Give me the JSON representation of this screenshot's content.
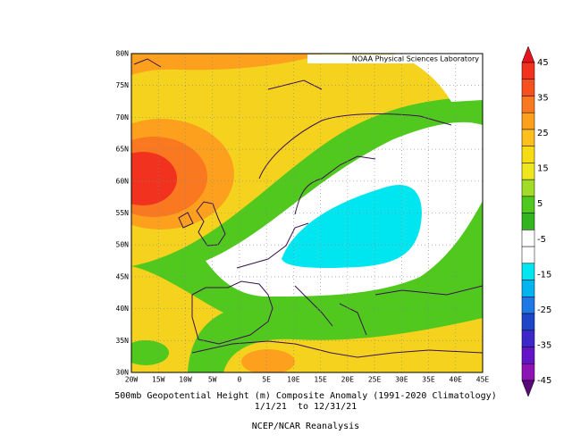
{
  "map": {
    "credit": "NOAA Physical Sciences Laboratory",
    "lat_labels": [
      "80N",
      "75N",
      "70N",
      "65N",
      "60N",
      "55N",
      "50N",
      "45N",
      "40N",
      "35N",
      "30N"
    ],
    "lon_labels": [
      "20W",
      "15W",
      "10W",
      "5W",
      "0",
      "5E",
      "10E",
      "15E",
      "20E",
      "25E",
      "30E",
      "35E",
      "40E",
      "45E"
    ],
    "colorbar": {
      "labels": [
        "45",
        "35",
        "25",
        "15",
        "5",
        "-5",
        "-15",
        "-25",
        "-35",
        "-45"
      ],
      "colors": [
        "#e6141e",
        "#f0321e",
        "#f5501e",
        "#fa7820",
        "#fca01e",
        "#ffc01e",
        "#f5dc14",
        "#f0e61e",
        "#a0dc28",
        "#50c81e",
        "#32b41e",
        "#ffffff",
        "#ffffff",
        "#00e6f0",
        "#00b4f0",
        "#1e78e6",
        "#1e46c8",
        "#3c28c8",
        "#6414c8",
        "#8c14b4",
        "#5a0a78"
      ]
    },
    "caption": {
      "title": "500mb Geopotential Height (m) Composite Anomaly (1991-2020 Climatology)",
      "period": "1/1/21  to 12/31/21",
      "source": "NCEP/NCAR Reanalysis"
    }
  }
}
